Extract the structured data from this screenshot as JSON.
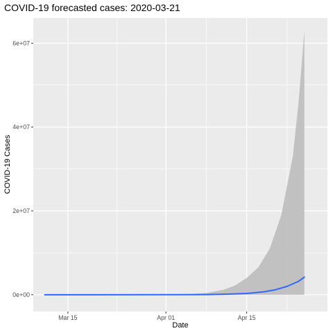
{
  "chart_data": {
    "type": "area",
    "title": "COVID-19 forecasted cases: 2020-03-21",
    "xlabel": "Date",
    "ylabel": "COVID-19 Cases",
    "x_type": "date",
    "xlim": [
      "2020-03-09",
      "2020-04-29"
    ],
    "ylim": [
      -4000000,
      66000000
    ],
    "grid": true,
    "legend": "none",
    "x_ticks": [
      {
        "date": "2020-03-15",
        "label": "Mar 15"
      },
      {
        "date": "2020-04-01",
        "label": "Apr 01"
      },
      {
        "date": "2020-04-15",
        "label": "Apr 15"
      }
    ],
    "y_ticks": [
      {
        "value": 0,
        "label": "0e+00"
      },
      {
        "value": 20000000,
        "label": "2e+07"
      },
      {
        "value": 40000000,
        "label": "4e+07"
      },
      {
        "value": 60000000,
        "label": "6e+07"
      }
    ],
    "series": [
      {
        "type": "line",
        "color": "#3366ff",
        "points": [
          {
            "x": "2020-03-11",
            "y": 0
          },
          {
            "x": "2020-03-20",
            "y": 0
          },
          {
            "x": "2020-04-01",
            "y": 5000
          },
          {
            "x": "2020-04-08",
            "y": 40000
          },
          {
            "x": "2020-04-12",
            "y": 150000
          },
          {
            "x": "2020-04-15",
            "y": 300000
          },
          {
            "x": "2020-04-18",
            "y": 700000
          },
          {
            "x": "2020-04-20",
            "y": 1200000
          },
          {
            "x": "2020-04-22",
            "y": 2000000
          },
          {
            "x": "2020-04-24",
            "y": 3200000
          },
          {
            "x": "2020-04-25",
            "y": 4200000
          }
        ]
      },
      {
        "type": "ribbon",
        "color": "#bfbfbf",
        "points": [
          {
            "x": "2020-03-11",
            "lower": 0,
            "upper": 0
          },
          {
            "x": "2020-03-25",
            "lower": 0,
            "upper": 20000
          },
          {
            "x": "2020-04-05",
            "lower": 0,
            "upper": 150000
          },
          {
            "x": "2020-04-08",
            "lower": 0,
            "upper": 400000
          },
          {
            "x": "2020-04-11",
            "lower": 0,
            "upper": 1200000
          },
          {
            "x": "2020-04-13",
            "lower": 0,
            "upper": 2200000
          },
          {
            "x": "2020-04-15",
            "lower": 0,
            "upper": 4000000
          },
          {
            "x": "2020-04-17",
            "lower": 0,
            "upper": 6500000
          },
          {
            "x": "2020-04-19",
            "lower": 0,
            "upper": 11000000
          },
          {
            "x": "2020-04-21",
            "lower": 0,
            "upper": 19000000
          },
          {
            "x": "2020-04-23",
            "lower": 0,
            "upper": 33000000
          },
          {
            "x": "2020-04-24",
            "lower": 0,
            "upper": 46000000
          },
          {
            "x": "2020-04-25",
            "lower": 0,
            "upper": 63000000
          }
        ]
      }
    ]
  }
}
